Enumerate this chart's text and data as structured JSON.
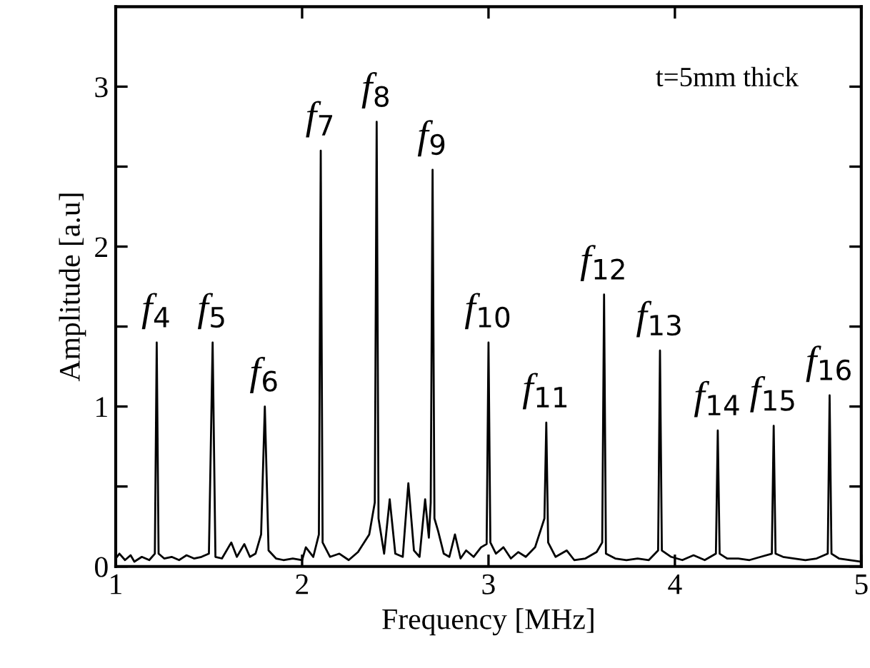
{
  "chart_data": {
    "type": "line",
    "xlabel": "Frequency [MHz]",
    "ylabel": "Amplitude [a.u]",
    "xlim": [
      1,
      5
    ],
    "ylim": [
      0,
      3.5
    ],
    "xticks": [
      1,
      2,
      3,
      4,
      5
    ],
    "yticks": [
      0,
      {
        "value": 0.5,
        "label": null
      },
      1,
      {
        "value": 1.5,
        "label": null
      },
      2,
      {
        "value": 2.5,
        "label": null
      },
      3
    ],
    "grid": false,
    "legend": false,
    "marker": "none",
    "line_style": "solid",
    "series": [
      {
        "color": "#000000",
        "x": [
          1.0,
          1.02,
          1.05,
          1.08,
          1.1,
          1.14,
          1.18,
          1.21,
          1.22,
          1.23,
          1.26,
          1.3,
          1.34,
          1.38,
          1.42,
          1.46,
          1.5,
          1.52,
          1.535,
          1.57,
          1.62,
          1.65,
          1.69,
          1.72,
          1.75,
          1.78,
          1.8,
          1.82,
          1.86,
          1.9,
          1.95,
          2.0,
          2.02,
          2.06,
          2.09,
          2.1,
          2.11,
          2.15,
          2.2,
          2.25,
          2.3,
          2.36,
          2.39,
          2.4,
          2.41,
          2.44,
          2.47,
          2.5,
          2.54,
          2.57,
          2.6,
          2.63,
          2.66,
          2.68,
          2.69,
          2.7,
          2.71,
          2.73,
          2.76,
          2.79,
          2.82,
          2.85,
          2.88,
          2.92,
          2.96,
          2.99,
          3.0,
          3.01,
          3.04,
          3.08,
          3.12,
          3.16,
          3.2,
          3.25,
          3.3,
          3.31,
          3.32,
          3.36,
          3.42,
          3.46,
          3.52,
          3.58,
          3.61,
          3.62,
          3.63,
          3.68,
          3.74,
          3.8,
          3.86,
          3.91,
          3.92,
          3.93,
          3.98,
          4.04,
          4.1,
          4.16,
          4.22,
          4.23,
          4.24,
          4.28,
          4.34,
          4.4,
          4.46,
          4.52,
          4.53,
          4.54,
          4.58,
          4.64,
          4.7,
          4.76,
          4.82,
          4.83,
          4.84,
          4.88,
          4.94,
          5.0
        ],
        "values": [
          0.05,
          0.08,
          0.04,
          0.07,
          0.03,
          0.06,
          0.04,
          0.08,
          1.4,
          0.08,
          0.05,
          0.06,
          0.04,
          0.07,
          0.05,
          0.06,
          0.08,
          1.4,
          0.06,
          0.05,
          0.15,
          0.06,
          0.14,
          0.06,
          0.08,
          0.2,
          1.0,
          0.1,
          0.05,
          0.04,
          0.05,
          0.04,
          0.12,
          0.06,
          0.2,
          2.6,
          0.15,
          0.06,
          0.08,
          0.04,
          0.09,
          0.2,
          0.4,
          2.78,
          0.3,
          0.08,
          0.42,
          0.08,
          0.06,
          0.52,
          0.1,
          0.06,
          0.42,
          0.18,
          0.4,
          2.48,
          0.3,
          0.22,
          0.08,
          0.06,
          0.2,
          0.05,
          0.1,
          0.06,
          0.12,
          0.14,
          1.4,
          0.15,
          0.08,
          0.12,
          0.05,
          0.09,
          0.06,
          0.12,
          0.3,
          0.9,
          0.15,
          0.06,
          0.1,
          0.04,
          0.05,
          0.09,
          0.15,
          1.7,
          0.08,
          0.05,
          0.04,
          0.05,
          0.04,
          0.1,
          1.35,
          0.1,
          0.06,
          0.04,
          0.07,
          0.04,
          0.08,
          0.85,
          0.08,
          0.05,
          0.05,
          0.04,
          0.06,
          0.08,
          0.88,
          0.08,
          0.06,
          0.05,
          0.04,
          0.05,
          0.08,
          1.07,
          0.08,
          0.05,
          0.04,
          0.03
        ]
      }
    ],
    "annotations": [
      {
        "text": "f$_{4}$",
        "x": 1.22,
        "y": 1.4
      },
      {
        "text": "f$_{5}$",
        "x": 1.52,
        "y": 1.4
      },
      {
        "text": "f$_{6}$",
        "x": 1.8,
        "y": 1.0
      },
      {
        "text": "f$_{7}$",
        "x": 2.1,
        "y": 2.6
      },
      {
        "text": "f$_{8}$",
        "x": 2.4,
        "y": 2.78
      },
      {
        "text": "f$_{9}$",
        "x": 2.7,
        "y": 2.48
      },
      {
        "text": "f$_{10}$",
        "x": 3.0,
        "y": 1.4
      },
      {
        "text": "f$_{11}$",
        "x": 3.31,
        "y": 0.9
      },
      {
        "text": "f$_{12}$",
        "x": 3.62,
        "y": 1.7
      },
      {
        "text": "f$_{13}$",
        "x": 3.92,
        "y": 1.35
      },
      {
        "text": "f$_{14}$",
        "x": 4.23,
        "y": 0.85
      },
      {
        "text": "f$_{15}$",
        "x": 4.53,
        "y": 0.88
      },
      {
        "text": "f$_{16}$",
        "x": 4.83,
        "y": 1.07
      },
      "t=5mm thick"
    ]
  }
}
